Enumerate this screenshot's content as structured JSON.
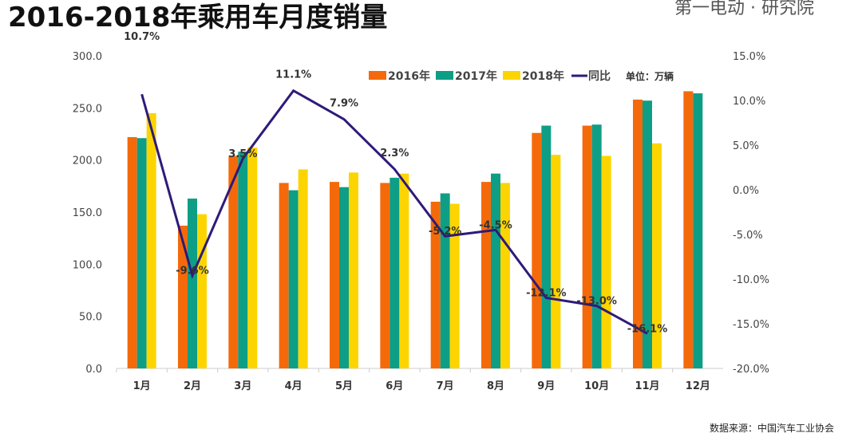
{
  "title": "2016-2018年乘用车月度销量",
  "logo": "第一电动 · 研究院",
  "source": "数据来源：中国汽车工业协会",
  "chart_data": {
    "type": "bar",
    "title": "2016-2018年乘用车月度销量",
    "unit_label": "单位：万辆",
    "categories": [
      "1月",
      "2月",
      "3月",
      "4月",
      "5月",
      "6月",
      "7月",
      "8月",
      "9月",
      "10月",
      "11月",
      "12月"
    ],
    "ylim": [
      0,
      300
    ],
    "yticks": [
      "0.0",
      "50.0",
      "100.0",
      "150.0",
      "200.0",
      "250.0",
      "300.0"
    ],
    "y2lim": [
      -20,
      15
    ],
    "y2ticks": [
      "-20.0%",
      "-15.0%",
      "-10.0%",
      "-5.0%",
      "0.0%",
      "5.0%",
      "10.0%",
      "15.0%"
    ],
    "legend_position": "top",
    "grid": false,
    "series": [
      {
        "name": "2016年",
        "color": "#F46A0A",
        "values": [
          222,
          137,
          204,
          178,
          179,
          178,
          160,
          179,
          226,
          233,
          258,
          266
        ]
      },
      {
        "name": "2017年",
        "color": "#0E9E86",
        "values": [
          221,
          163,
          208,
          171,
          174,
          183,
          168,
          187,
          233,
          234,
          257,
          264
        ]
      },
      {
        "name": "2018年",
        "color": "#FCD500",
        "values": [
          245,
          148,
          212,
          191,
          188,
          187,
          158,
          178,
          205,
          204,
          216,
          null
        ]
      }
    ],
    "line": {
      "name": "同比",
      "color": "#2E1A7A",
      "axis": "right",
      "values": [
        10.7,
        -9.6,
        3.5,
        11.1,
        7.9,
        2.3,
        -5.2,
        -4.5,
        -12.1,
        -13.0,
        -16.1,
        null
      ],
      "labels": [
        "10.7%",
        "-9.6%",
        "3.5%",
        "11.1%",
        "7.9%",
        "2.3%",
        "-5.2%",
        "-4.5%",
        "-12.1%",
        "-13.0%",
        "-16.1%",
        ""
      ]
    }
  }
}
